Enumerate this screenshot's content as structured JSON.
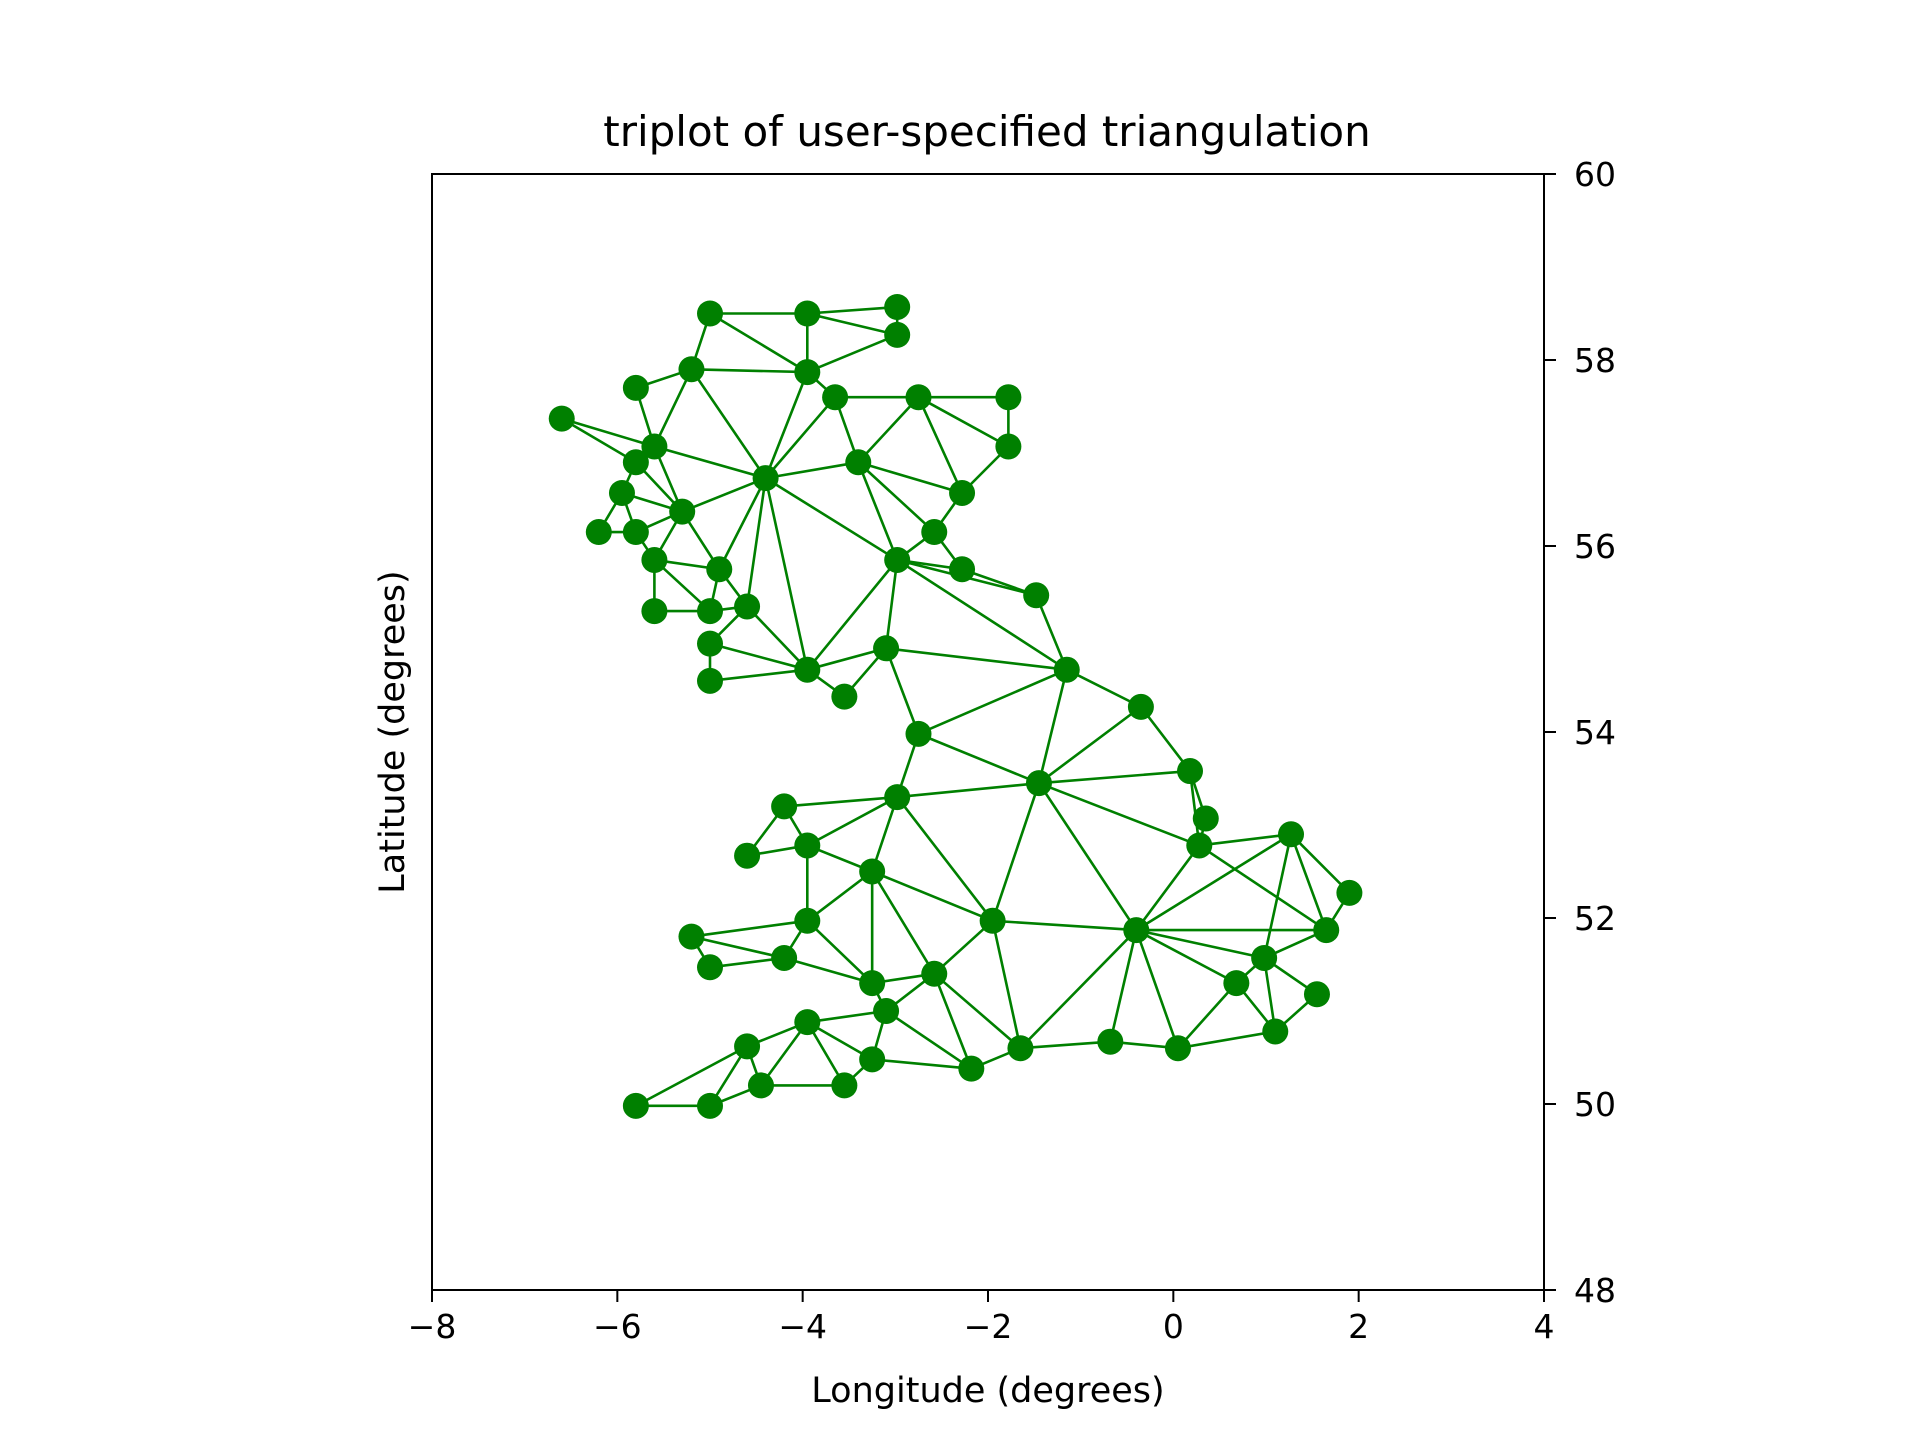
{
  "chart_data": {
    "type": "scatter",
    "subtype": "triplot",
    "title": "triplot of user-specified triangulation",
    "xlabel": "Longitude (degrees)",
    "ylabel": "Latitude (degrees)",
    "xlim": [
      -8,
      4
    ],
    "ylim": [
      48,
      60
    ],
    "x_ticks": [
      -8,
      -6,
      -4,
      -2,
      0,
      2,
      4
    ],
    "x_tick_labels": [
      "−8",
      "−6",
      "−4",
      "−2",
      "0",
      "2",
      "4"
    ],
    "y_ticks": [
      48,
      50,
      52,
      54,
      56,
      58,
      60
    ],
    "y_tick_labels": [
      "48",
      "50",
      "52",
      "54",
      "56",
      "58",
      "60"
    ],
    "y_axis_position": "right",
    "grid": false,
    "color": "#008000",
    "marker": "circle",
    "points": [
      [
        -5.0,
        58.5
      ],
      [
        -3.95,
        58.5
      ],
      [
        -2.98,
        58.57
      ],
      [
        -2.98,
        58.27
      ],
      [
        -5.2,
        57.9
      ],
      [
        -3.95,
        57.87
      ],
      [
        -5.8,
        57.7
      ],
      [
        -3.65,
        57.6
      ],
      [
        -2.75,
        57.6
      ],
      [
        -1.78,
        57.6
      ],
      [
        -6.6,
        57.37
      ],
      [
        -5.6,
        57.07
      ],
      [
        -5.8,
        56.9
      ],
      [
        -3.4,
        56.9
      ],
      [
        -1.78,
        57.07
      ],
      [
        -4.4,
        56.73
      ],
      [
        -5.95,
        56.57
      ],
      [
        -5.3,
        56.37
      ],
      [
        -2.28,
        56.57
      ],
      [
        -6.2,
        56.15
      ],
      [
        -5.8,
        56.15
      ],
      [
        -2.58,
        56.15
      ],
      [
        -5.6,
        55.85
      ],
      [
        -4.9,
        55.75
      ],
      [
        -2.98,
        55.85
      ],
      [
        -2.28,
        55.75
      ],
      [
        -5.6,
        55.3
      ],
      [
        -5.0,
        55.3
      ],
      [
        -4.6,
        55.35
      ],
      [
        -1.48,
        55.47
      ],
      [
        -5.0,
        54.95
      ],
      [
        -3.1,
        54.9
      ],
      [
        -3.95,
        54.67
      ],
      [
        -1.15,
        54.67
      ],
      [
        -5.0,
        54.55
      ],
      [
        -3.55,
        54.38
      ],
      [
        -0.35,
        54.27
      ],
      [
        -2.75,
        53.98
      ],
      [
        0.18,
        53.58
      ],
      [
        -1.45,
        53.45
      ],
      [
        -2.98,
        53.3
      ],
      [
        -4.2,
        53.2
      ],
      [
        0.35,
        53.07
      ],
      [
        -4.6,
        52.67
      ],
      [
        -3.95,
        52.78
      ],
      [
        0.28,
        52.78
      ],
      [
        1.27,
        52.9
      ],
      [
        -3.25,
        52.5
      ],
      [
        1.9,
        52.27
      ],
      [
        -5.2,
        51.8
      ],
      [
        -3.95,
        51.97
      ],
      [
        -1.95,
        51.97
      ],
      [
        -0.4,
        51.87
      ],
      [
        1.65,
        51.87
      ],
      [
        -4.2,
        51.57
      ],
      [
        0.98,
        51.57
      ],
      [
        -5.0,
        51.47
      ],
      [
        -2.58,
        51.4
      ],
      [
        -3.25,
        51.3
      ],
      [
        0.68,
        51.3
      ],
      [
        1.55,
        51.18
      ],
      [
        -3.1,
        51.0
      ],
      [
        -3.95,
        50.88
      ],
      [
        1.1,
        50.78
      ],
      [
        -4.6,
        50.62
      ],
      [
        -1.65,
        50.6
      ],
      [
        -0.68,
        50.67
      ],
      [
        0.05,
        50.6
      ],
      [
        -3.25,
        50.48
      ],
      [
        -2.18,
        50.38
      ],
      [
        -4.45,
        50.2
      ],
      [
        -3.55,
        50.2
      ],
      [
        -5.8,
        49.98
      ],
      [
        -5.0,
        49.98
      ]
    ],
    "triangles": [
      [
        0,
        1,
        5
      ],
      [
        0,
        4,
        5
      ],
      [
        1,
        2,
        3
      ],
      [
        1,
        3,
        5
      ],
      [
        4,
        6,
        11
      ],
      [
        4,
        11,
        15
      ],
      [
        4,
        5,
        15
      ],
      [
        5,
        7,
        15
      ],
      [
        7,
        8,
        13
      ],
      [
        7,
        13,
        15
      ],
      [
        8,
        9,
        14
      ],
      [
        8,
        14,
        18
      ],
      [
        8,
        13,
        18
      ],
      [
        10,
        11,
        12
      ],
      [
        11,
        12,
        17
      ],
      [
        11,
        15,
        17
      ],
      [
        12,
        16,
        17
      ],
      [
        16,
        19,
        20
      ],
      [
        16,
        17,
        20
      ],
      [
        17,
        20,
        22
      ],
      [
        17,
        22,
        23
      ],
      [
        15,
        17,
        23
      ],
      [
        15,
        23,
        28
      ],
      [
        15,
        28,
        32
      ],
      [
        15,
        24,
        32
      ],
      [
        13,
        15,
        24
      ],
      [
        13,
        18,
        21
      ],
      [
        13,
        21,
        24
      ],
      [
        21,
        24,
        25
      ],
      [
        24,
        25,
        29
      ],
      [
        22,
        23,
        27
      ],
      [
        22,
        26,
        27
      ],
      [
        23,
        27,
        28
      ],
      [
        28,
        30,
        32
      ],
      [
        30,
        32,
        34
      ],
      [
        24,
        29,
        33
      ],
      [
        24,
        31,
        33
      ],
      [
        24,
        31,
        32
      ],
      [
        31,
        32,
        35
      ],
      [
        31,
        33,
        37
      ],
      [
        33,
        37,
        39
      ],
      [
        33,
        36,
        39
      ],
      [
        36,
        38,
        39
      ],
      [
        37,
        39,
        40
      ],
      [
        39,
        40,
        51
      ],
      [
        38,
        39,
        45
      ],
      [
        38,
        42,
        45
      ],
      [
        39,
        45,
        52
      ],
      [
        39,
        51,
        52
      ],
      [
        40,
        41,
        44
      ],
      [
        40,
        44,
        47
      ],
      [
        40,
        47,
        51
      ],
      [
        41,
        43,
        44
      ],
      [
        44,
        47,
        50
      ],
      [
        47,
        50,
        58
      ],
      [
        47,
        57,
        58
      ],
      [
        47,
        51,
        57
      ],
      [
        45,
        46,
        52
      ],
      [
        45,
        52,
        53
      ],
      [
        46,
        48,
        53
      ],
      [
        46,
        53,
        55
      ],
      [
        46,
        52,
        55
      ],
      [
        49,
        50,
        54
      ],
      [
        49,
        54,
        56
      ],
      [
        50,
        54,
        58
      ],
      [
        51,
        57,
        65
      ],
      [
        51,
        52,
        65
      ],
      [
        52,
        65,
        66
      ],
      [
        52,
        55,
        59
      ],
      [
        52,
        59,
        67
      ],
      [
        52,
        66,
        67
      ],
      [
        59,
        63,
        67
      ],
      [
        55,
        59,
        63
      ],
      [
        55,
        60,
        63
      ],
      [
        57,
        58,
        61
      ],
      [
        57,
        61,
        69
      ],
      [
        57,
        65,
        69
      ],
      [
        61,
        62,
        68
      ],
      [
        61,
        68,
        69
      ],
      [
        62,
        64,
        70
      ],
      [
        62,
        70,
        71
      ],
      [
        62,
        68,
        71
      ],
      [
        64,
        72,
        73
      ],
      [
        64,
        70,
        73
      ]
    ]
  }
}
